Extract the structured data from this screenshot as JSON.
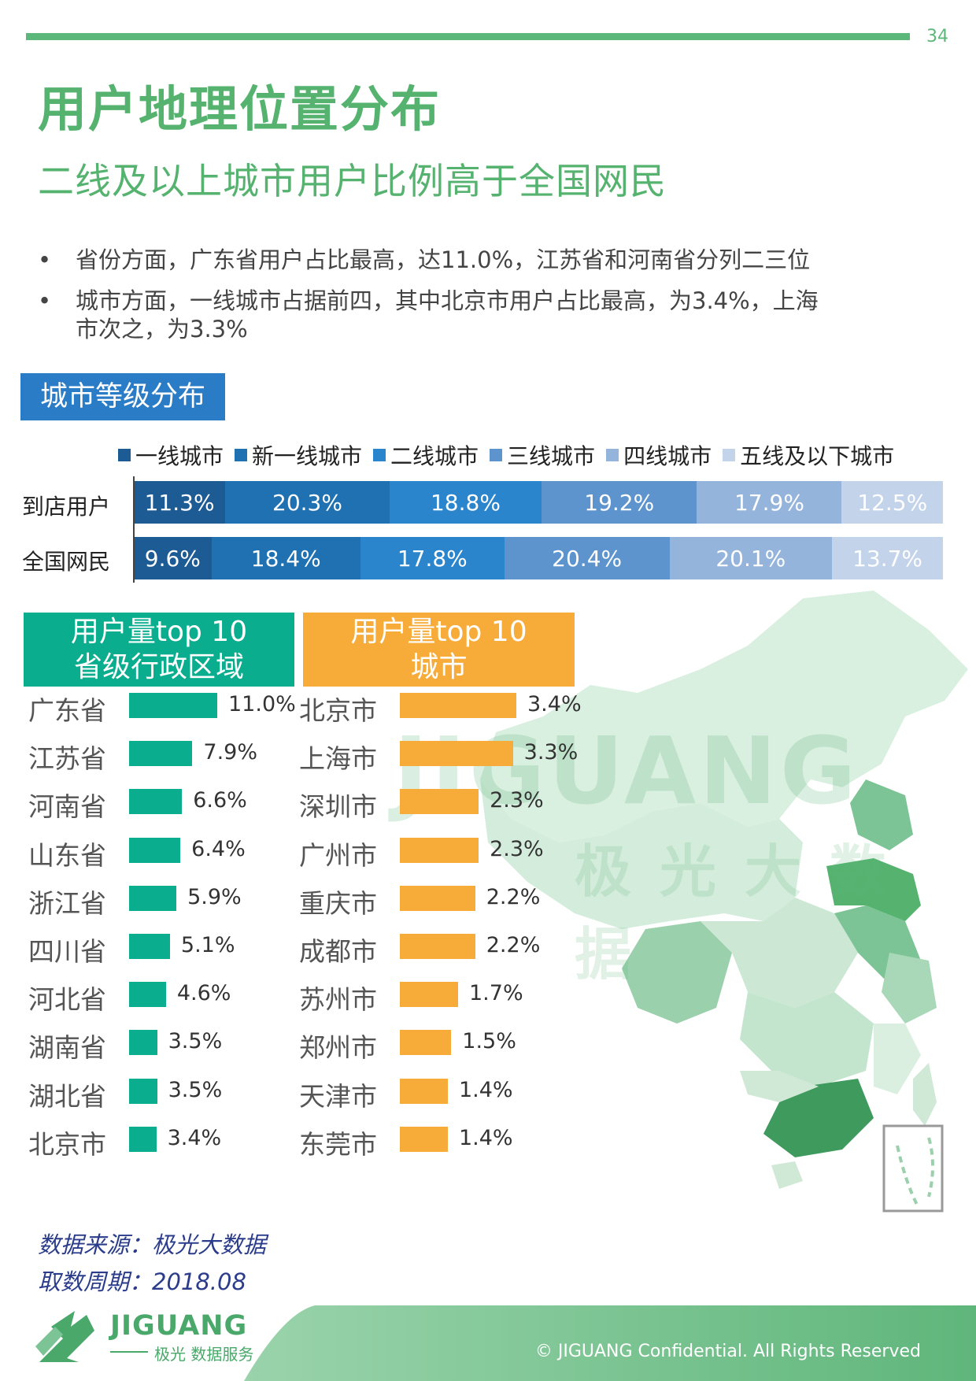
{
  "page_number": "34",
  "title": "用户地理位置分布",
  "subtitle": "二线及以上城市用户比例高于全国网民",
  "bullets": [
    {
      "dot": "•",
      "line1": "省份方面，广东省用户占比最高，达11.0%，江苏省和河南省分列二三位",
      "line2": ""
    },
    {
      "dot": "•",
      "line1": "城市方面，一线城市占据前四，其中北京市用户占比最高，为3.4%，上海",
      "line2": "市次之，为3.3%"
    }
  ],
  "colors": {
    "brand_green": "#5cb87a",
    "tier_colors": [
      "#1d5b94",
      "#1f71b2",
      "#2b85cc",
      "#5d94cd",
      "#94b4dc",
      "#c3d3ea"
    ],
    "province_bar": "#0aad8e",
    "city_bar": "#f7ac3a"
  },
  "chart_data": [
    {
      "type": "bar",
      "orientation": "horizontal-stacked-100",
      "title": "城市等级分布",
      "legend_position": "top",
      "categories": [
        "到店用户",
        "全国网民"
      ],
      "series": [
        {
          "name": "一线城市",
          "values": [
            11.3,
            9.6
          ],
          "labels": [
            "11.3%",
            "9.6%"
          ]
        },
        {
          "name": "新一线城市",
          "values": [
            20.3,
            18.4
          ],
          "labels": [
            "20.3%",
            "18.4%"
          ]
        },
        {
          "name": "二线城市",
          "values": [
            18.8,
            17.8
          ],
          "labels": [
            "18.8%",
            "17.8%"
          ]
        },
        {
          "name": "三线城市",
          "values": [
            19.2,
            20.4
          ],
          "labels": [
            "19.2%",
            "20.4%"
          ]
        },
        {
          "name": "四线城市",
          "values": [
            17.9,
            20.1
          ],
          "labels": [
            "17.9%",
            "20.1%"
          ]
        },
        {
          "name": "五线及以下城市",
          "values": [
            12.5,
            13.7
          ],
          "labels": [
            "12.5%",
            "13.7%"
          ]
        }
      ]
    },
    {
      "type": "bar",
      "orientation": "horizontal",
      "title_line1": "用户量top 10",
      "title_line2": "省级行政区域",
      "categories": [
        "广东省",
        "江苏省",
        "河南省",
        "山东省",
        "浙江省",
        "四川省",
        "河北省",
        "湖南省",
        "湖北省",
        "北京市"
      ],
      "values": [
        11.0,
        7.9,
        6.6,
        6.4,
        5.9,
        5.1,
        4.6,
        3.5,
        3.5,
        3.4
      ],
      "labels": [
        "11.0%",
        "7.9%",
        "6.6%",
        "6.4%",
        "5.9%",
        "5.1%",
        "4.6%",
        "3.5%",
        "3.5%",
        "3.4%"
      ],
      "xlim": [
        0,
        11.0
      ]
    },
    {
      "type": "bar",
      "orientation": "horizontal",
      "title_line1": "用户量top 10",
      "title_line2": "城市",
      "categories": [
        "北京市",
        "上海市",
        "深圳市",
        "广州市",
        "重庆市",
        "成都市",
        "苏州市",
        "郑州市",
        "天津市",
        "东莞市"
      ],
      "values": [
        3.4,
        3.3,
        2.3,
        2.3,
        2.2,
        2.2,
        1.7,
        1.5,
        1.4,
        1.4
      ],
      "labels": [
        "3.4%",
        "3.3%",
        "2.3%",
        "2.3%",
        "2.2%",
        "2.2%",
        "1.7%",
        "1.5%",
        "1.4%",
        "1.4%"
      ],
      "xlim": [
        0,
        3.4
      ]
    }
  ],
  "map": {
    "description_icon": "china-province-map"
  },
  "watermark": {
    "en": "JIGUANG",
    "cn": "极光大数据"
  },
  "source": {
    "line1": "数据来源：极光大数据",
    "line2": "取数周期：2018.08"
  },
  "footer": {
    "logo_text": "JIGUANG",
    "logo_sub": "极光 数据服务",
    "copyright": "© JIGUANG Confidential. All Rights Reserved"
  }
}
